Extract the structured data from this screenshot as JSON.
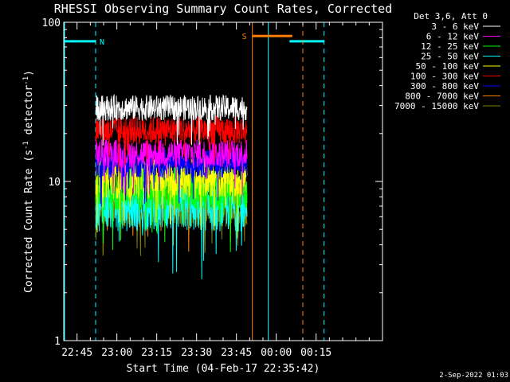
{
  "chart_data": {
    "type": "line",
    "title": "RHESSI Observing Summary Count Rates, Corrected",
    "xlabel": "Start Time (04-Feb-17 22:35:42)",
    "ylabel_main": "Corrected Count Rate (s",
    "ylabel_sup1": "-1",
    "ylabel_mid": " detector",
    "ylabel_sup2": "-1",
    "ylabel_end": ")",
    "yscale": "log",
    "ylim": [
      1,
      100
    ],
    "xlim_minutes": [
      -20,
      100
    ],
    "x_tick_labels": [
      "22:45",
      "23:00",
      "23:15",
      "23:30",
      "23:45",
      "00:00",
      "00:15"
    ],
    "x_tick_minutes": [
      -15,
      0,
      15,
      30,
      45,
      60,
      75
    ],
    "y_tick_labels": [
      "1",
      "10",
      "100"
    ],
    "y_tick_values": [
      1,
      10,
      100
    ],
    "legend_title": "Det 3,6, Att 0",
    "legend_placement": "top-right",
    "timestamp": "2-Sep-2022 01:03",
    "observation_window_minutes": [
      -8,
      49
    ],
    "series": [
      {
        "name": "3 - 6 keV",
        "color": "#ffffff",
        "level": 29,
        "spread": 0.08
      },
      {
        "name": "6 - 12 keV",
        "color": "#ff00ff",
        "level": 15,
        "spread": 0.09
      },
      {
        "name": "12 - 25 keV",
        "color": "#00ff00",
        "level": 9,
        "spread": 0.14
      },
      {
        "name": "25 - 50 keV",
        "color": "#00ffff",
        "level": 7,
        "spread": 0.16
      },
      {
        "name": "50 - 100 keV",
        "color": "#ffff00",
        "level": 10.5,
        "spread": 0.13
      },
      {
        "name": "100 - 300 keV",
        "color": "#ff0000",
        "level": 21,
        "spread": 0.09
      },
      {
        "name": "300 - 800 keV",
        "color": "#0000ff",
        "level": 13,
        "spread": 0.09
      },
      {
        "name": "800 - 7000 keV",
        "color": "#ff8000",
        "level": 7.5,
        "spread": 0.11
      },
      {
        "name": "7000 - 15000 keV",
        "color": "#808000",
        "level": 6.5,
        "spread": 0.1
      }
    ],
    "flags": [
      {
        "label": "N",
        "color": "#00ffff",
        "y_value": 76,
        "segments_minutes": [
          [
            -20,
            -8
          ],
          [
            65,
            78
          ]
        ],
        "vlines_solid_minutes": [
          -20,
          57
        ],
        "vlines_dashed_minutes": [
          -8,
          78
        ]
      },
      {
        "label": "S",
        "color": "#ff8000",
        "y_value": 82,
        "segments_minutes": [
          [
            51,
            66
          ]
        ],
        "vlines_solid_minutes": [
          51
        ],
        "vlines_dashed_minutes": [
          70
        ]
      }
    ]
  }
}
